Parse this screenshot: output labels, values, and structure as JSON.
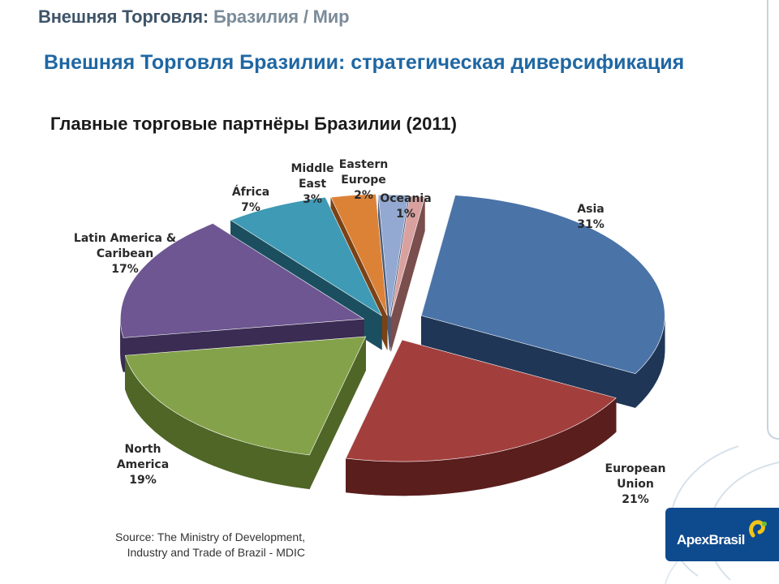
{
  "header": {
    "main": "Внешняя Торговля:",
    "sub": "Бразилия / Мир"
  },
  "slide_title": "Внешняя Торговля Бразилии: стратегическая  диверсификация",
  "chart_data": {
    "type": "pie",
    "title": "Главные торговые партнёры Бразилии (2011)",
    "slices": [
      {
        "label": "Asia",
        "label_lines": [
          "Asia",
          "31%"
        ],
        "value": 31,
        "color": "#4a73a8",
        "dark": "#1f3656"
      },
      {
        "label": "European Union",
        "label_lines": [
          "European",
          "Union",
          "21%"
        ],
        "value": 21,
        "color": "#a23f3d",
        "dark": "#5a1e1d"
      },
      {
        "label": "North America",
        "label_lines": [
          "North",
          "America",
          "19%"
        ],
        "value": 19,
        "color": "#84a24a",
        "dark": "#4f6627"
      },
      {
        "label": "Latin America & Caribean",
        "label_lines": [
          "Latin America &",
          "Caribean",
          "17%"
        ],
        "value": 17,
        "color": "#6d5691",
        "dark": "#3a2c52"
      },
      {
        "label": "África",
        "label_lines": [
          "África",
          "7%"
        ],
        "value": 7,
        "color": "#3e9ab5",
        "dark": "#1b4f60"
      },
      {
        "label": "Middle East",
        "label_lines": [
          "Middle",
          "East",
          "3%"
        ],
        "value": 3,
        "color": "#dc8237",
        "dark": "#7a4215"
      },
      {
        "label": "Eastern Europe",
        "label_lines": [
          "Eastern",
          "Europe",
          "2%"
        ],
        "value": 2,
        "color": "#93a9d1",
        "dark": "#4a5a7a"
      },
      {
        "label": "Oceania",
        "label_lines": [
          "Oceania",
          "1%"
        ],
        "value": 1,
        "color": "#d8a1a0",
        "dark": "#7a4e4d"
      }
    ]
  },
  "source": {
    "line1": "Source:  The Ministry of Development,",
    "line2": "Industry and Trade of Brazil - MDIC"
  },
  "brand": {
    "name": "ApexBrasil"
  },
  "colors": {
    "header": "#3f5468",
    "title": "#1f67a3",
    "brand": "#0e4a8e"
  }
}
